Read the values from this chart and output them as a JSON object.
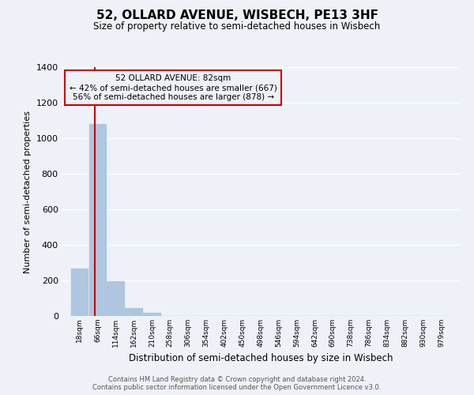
{
  "title": "52, OLLARD AVENUE, WISBECH, PE13 3HF",
  "subtitle": "Size of property relative to semi-detached houses in Wisbech",
  "xlabel": "Distribution of semi-detached houses by size in Wisbech",
  "ylabel": "Number of semi-detached properties",
  "footer_line1": "Contains HM Land Registry data © Crown copyright and database right 2024.",
  "footer_line2": "Contains public sector information licensed under the Open Government Licence v3.0.",
  "annotation_line1": "52 OLLARD AVENUE: 82sqm",
  "annotation_line2": "← 42% of semi-detached houses are smaller (667)",
  "annotation_line3": "56% of semi-detached houses are larger (878) →",
  "property_size": 82,
  "categories": [
    "18sqm",
    "66sqm",
    "114sqm",
    "162sqm",
    "210sqm",
    "258sqm",
    "306sqm",
    "354sqm",
    "402sqm",
    "450sqm",
    "498sqm",
    "546sqm",
    "594sqm",
    "642sqm",
    "690sqm",
    "738sqm",
    "786sqm",
    "834sqm",
    "882sqm",
    "930sqm",
    "979sqm"
  ],
  "bin_edges": [
    18,
    66,
    114,
    162,
    210,
    258,
    306,
    354,
    402,
    450,
    498,
    546,
    594,
    642,
    690,
    738,
    786,
    834,
    882,
    930,
    979
  ],
  "bin_width": 48,
  "values": [
    265,
    1080,
    195,
    45,
    18,
    0,
    0,
    0,
    0,
    0,
    0,
    0,
    0,
    0,
    0,
    0,
    0,
    0,
    0,
    0,
    0
  ],
  "bar_color": "#aec6e0",
  "bar_edge_color": "#aec6e0",
  "property_line_color": "#cc0000",
  "annotation_box_edge_color": "#cc0000",
  "background_color": "#eef2f8",
  "grid_color": "#ffffff",
  "ylim": [
    0,
    1400
  ],
  "yticks": [
    0,
    200,
    400,
    600,
    800,
    1000,
    1200,
    1400
  ]
}
